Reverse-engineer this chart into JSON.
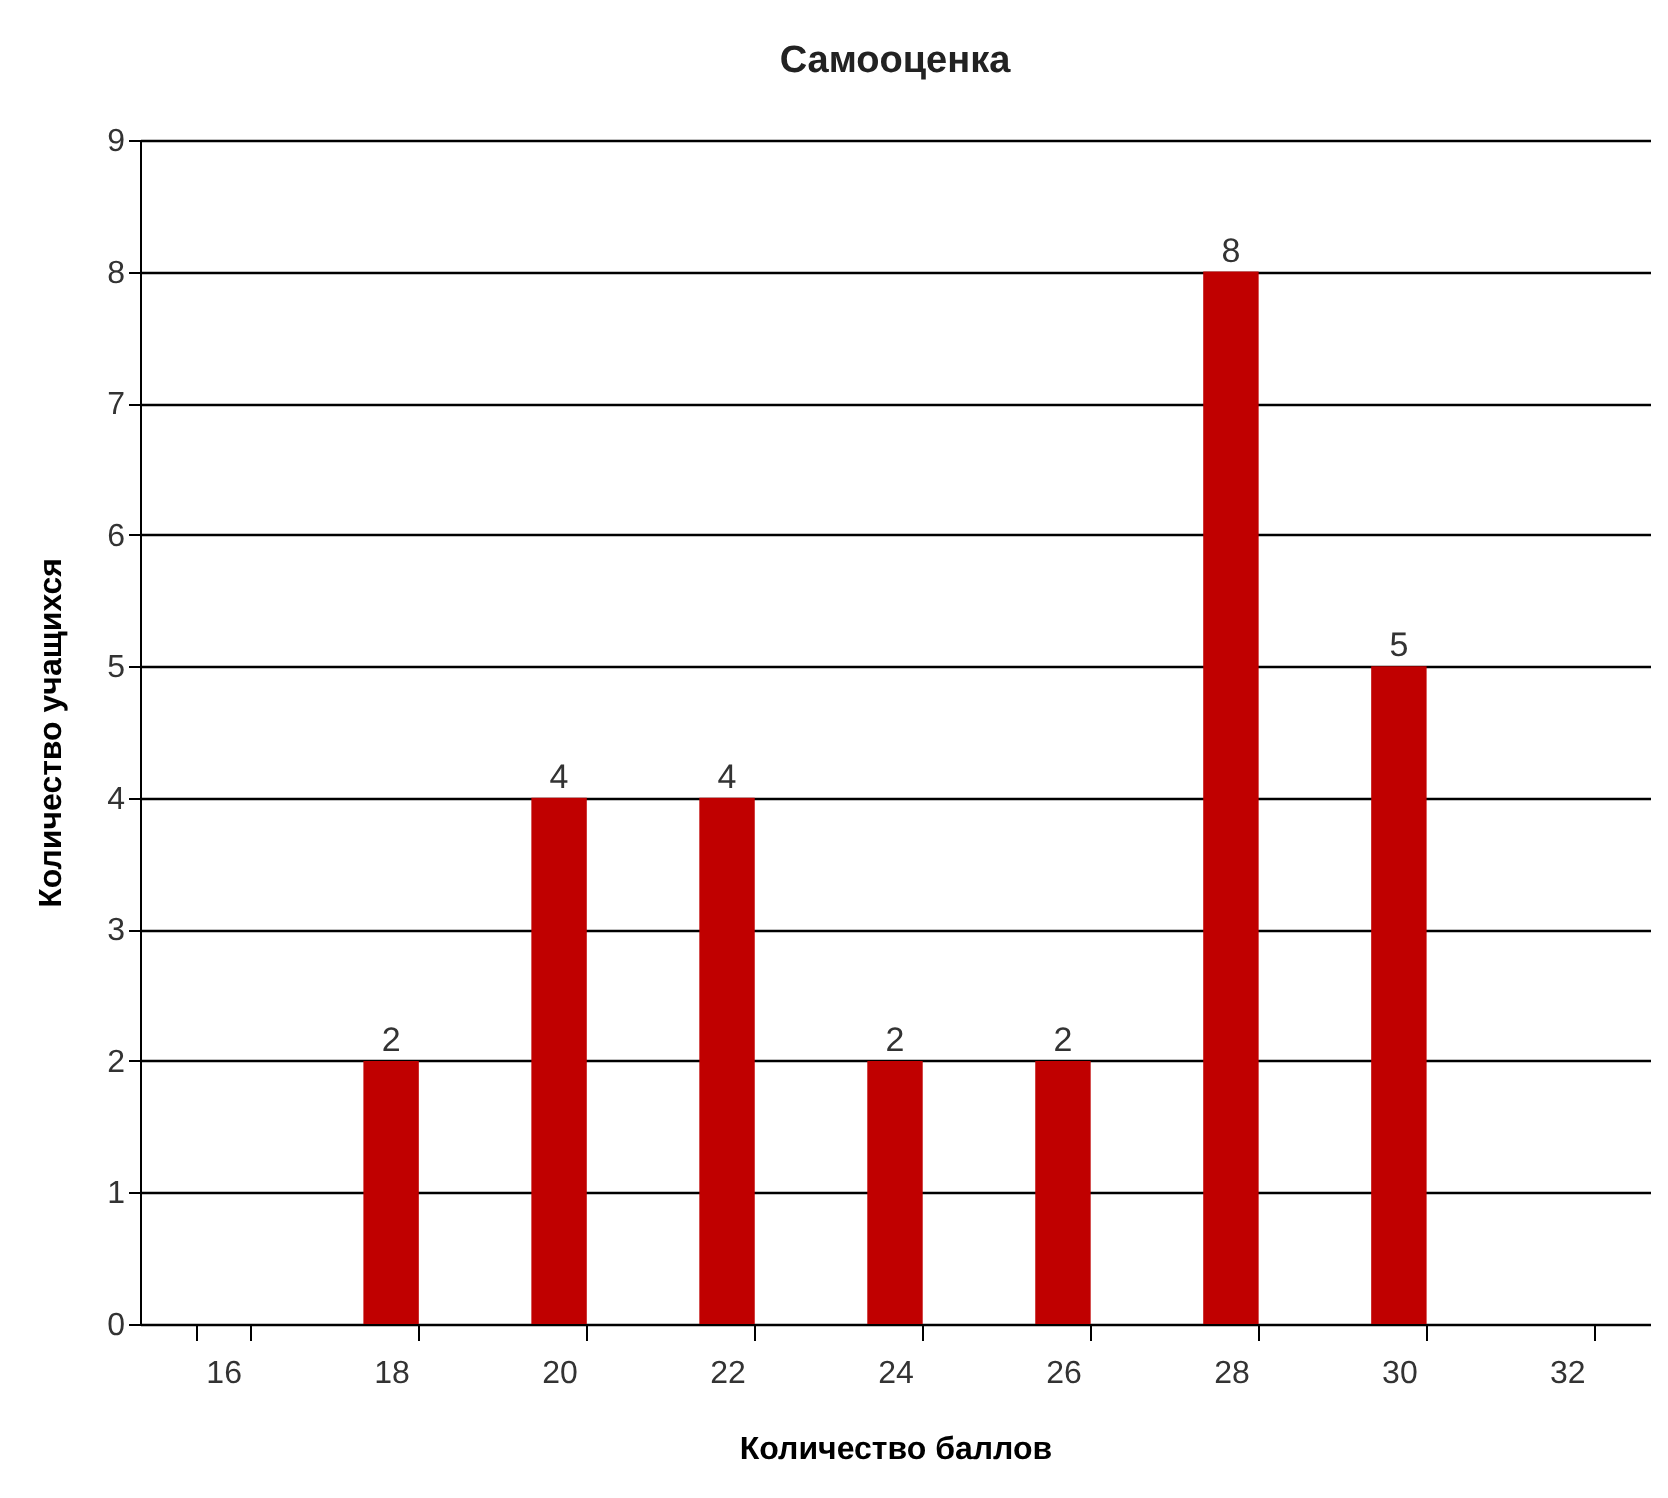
{
  "chart_data": {
    "type": "bar",
    "title": "Самооценка",
    "xlabel": "Количество баллов",
    "ylabel": "Количество учащихся",
    "categories": [
      "16",
      "18",
      "20",
      "22",
      "24",
      "26",
      "28",
      "30",
      "32"
    ],
    "values": [
      null,
      2,
      4,
      4,
      2,
      2,
      8,
      5,
      null
    ],
    "color": "#c00000",
    "ylim": [
      0,
      9
    ],
    "yticks": [
      0,
      1,
      2,
      3,
      4,
      5,
      6,
      7,
      8,
      9
    ],
    "grid": "y",
    "data_labels": true
  }
}
